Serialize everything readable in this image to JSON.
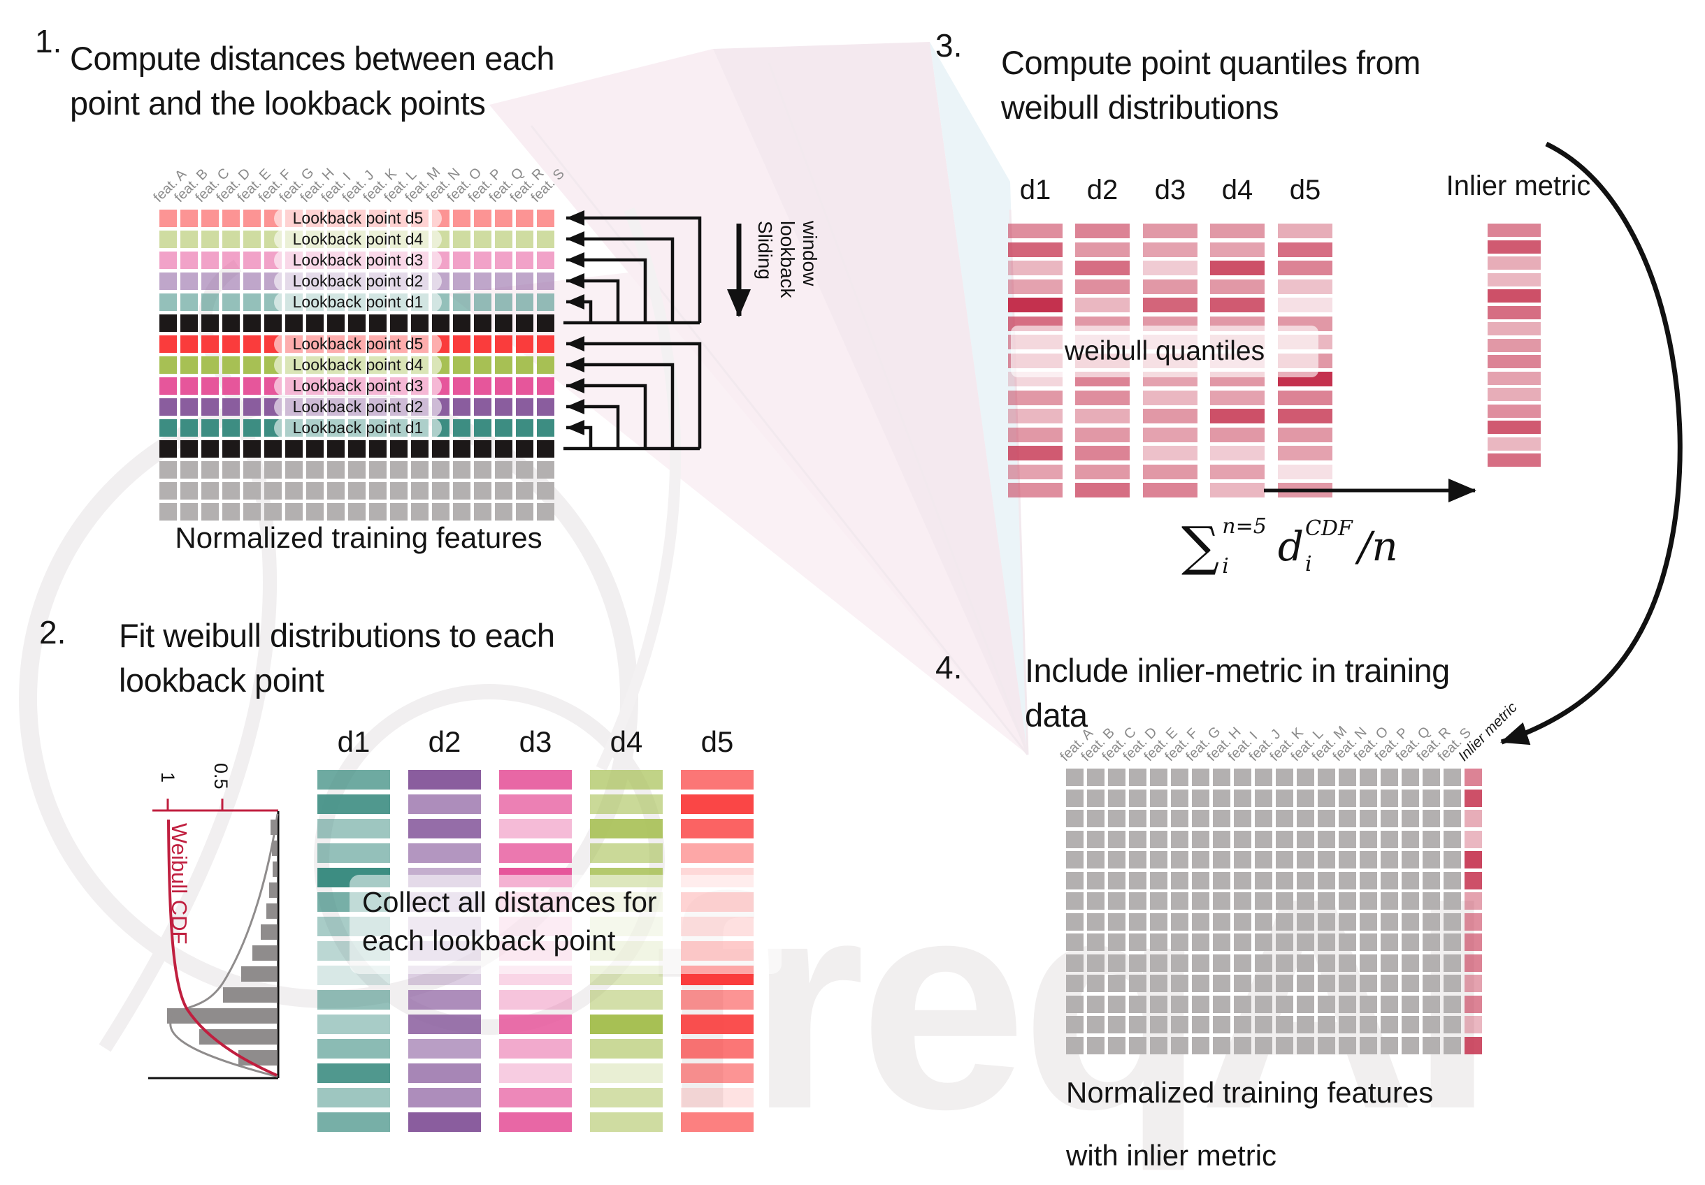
{
  "colors": {
    "teal": "#3D8D82",
    "purple": "#8A5D9E",
    "pink": "#E6569B",
    "green": "#A7C054",
    "red": "#FA3C3C",
    "black": "#1C1818",
    "gray": "#B3B0B0",
    "quantile_red": "#C4314E",
    "cdf_red": "#C01F3F",
    "hist_gray": "#8F8C8C",
    "feature_gray": "#8A8A8A"
  },
  "watermark": {
    "text": "freqAI"
  },
  "panel1": {
    "number": "1.",
    "title_lines": [
      "Compute distances between each",
      "point and the lookback points"
    ],
    "features": [
      "feat. A",
      "feat. B",
      "feat. C",
      "feat. D",
      "feat. E",
      "feat. F",
      "feat. G",
      "feat. H",
      "feat. I",
      "feat. J",
      "feat. K",
      "feat. L",
      "feat. M",
      "feat. N",
      "feat. O",
      "feat. P",
      "feat. Q",
      "feat. R",
      "feat. S"
    ],
    "rows": [
      {
        "color": "red",
        "faded": true,
        "label": "Lookback point d5"
      },
      {
        "color": "green",
        "faded": true,
        "label": "Lookback point d4"
      },
      {
        "color": "pink",
        "faded": true,
        "label": "Lookback point d3"
      },
      {
        "color": "purple",
        "faded": true,
        "label": "Lookback point d2"
      },
      {
        "color": "teal",
        "faded": true,
        "label": "Lookback point d1"
      },
      {
        "color": "black"
      },
      {
        "color": "red",
        "label": "Lookback point d5"
      },
      {
        "color": "green",
        "label": "Lookback point d4"
      },
      {
        "color": "pink",
        "label": "Lookback point d3"
      },
      {
        "color": "purple",
        "label": "Lookback point d2"
      },
      {
        "color": "teal",
        "label": "Lookback point d1"
      },
      {
        "color": "black"
      },
      {
        "color": "gray"
      },
      {
        "color": "gray"
      },
      {
        "color": "gray"
      }
    ],
    "sliding_label_lines": [
      "Sliding",
      "lookback",
      "window"
    ],
    "caption": "Normalized training features"
  },
  "panel2": {
    "number": "2.",
    "title_lines": [
      "Fit weibull distributions to each",
      "lookback point"
    ],
    "plot": {
      "type": "histogram+cdf",
      "ylabel": "Weibull CDF",
      "ticks": [
        "1",
        "0.5"
      ],
      "hist": [
        10,
        8,
        7,
        12,
        16,
        24,
        36,
        52,
        78,
        158,
        112,
        56
      ]
    },
    "columns": [
      "d1",
      "d2",
      "d3",
      "d4",
      "d5"
    ],
    "col_colors": [
      "teal",
      "purple",
      "pink",
      "green",
      "red"
    ],
    "opacity": [
      [
        0.75,
        0.9,
        0.5,
        0.55,
        1,
        0.7,
        0.45,
        0.35,
        0.2,
        0.55,
        0.45,
        0.6,
        0.9,
        0.5,
        0.7
      ],
      [
        1,
        0.7,
        0.9,
        0.65,
        0.5,
        0.35,
        0.3,
        0.35,
        0.3,
        0.7,
        0.85,
        0.6,
        0.75,
        0.7,
        1
      ],
      [
        0.9,
        0.75,
        0.4,
        0.8,
        1,
        0.35,
        0.25,
        0.3,
        0.25,
        0.35,
        0.85,
        0.5,
        0.3,
        0.7,
        0.9
      ],
      [
        0.7,
        0.6,
        0.9,
        0.6,
        0.85,
        0.3,
        0.25,
        0.35,
        0.4,
        0.5,
        1,
        0.6,
        0.25,
        0.5,
        0.55
      ],
      [
        0.7,
        0.95,
        0.8,
        0.45,
        0.2,
        0.5,
        0.35,
        0.6,
        1,
        0.55,
        0.9,
        0.7,
        0.55,
        0.15,
        0.65
      ]
    ],
    "overlay_lines": [
      "Collect all distances for",
      "each lookback point"
    ]
  },
  "panel3": {
    "number": "3.",
    "title_lines": [
      "Compute point quantiles from",
      "weibull distributions"
    ],
    "columns": [
      "d1",
      "d2",
      "d3",
      "d4",
      "d5"
    ],
    "opacity": [
      [
        0.55,
        0.75,
        0.35,
        0.45,
        1,
        0.7,
        0.5,
        0.55,
        0.2,
        0.5,
        0.35,
        0.5,
        0.8,
        0.45,
        0.55
      ],
      [
        0.6,
        0.5,
        0.7,
        0.55,
        0.35,
        0.5,
        0.3,
        0.5,
        0.6,
        0.55,
        0.4,
        0.5,
        0.6,
        0.5,
        0.7
      ],
      [
        0.5,
        0.45,
        0.25,
        0.5,
        0.75,
        0.5,
        0.3,
        0.4,
        0.45,
        0.35,
        0.5,
        0.45,
        0.3,
        0.5,
        0.6
      ],
      [
        0.5,
        0.45,
        0.85,
        0.5,
        0.8,
        0.5,
        0.35,
        0.3,
        0.5,
        0.45,
        0.85,
        0.5,
        0.25,
        0.45,
        0.35
      ],
      [
        0.4,
        0.7,
        0.6,
        0.3,
        0.15,
        0.5,
        0.35,
        0.5,
        1,
        0.6,
        0.8,
        0.5,
        0.45,
        0.15,
        0.5
      ]
    ],
    "overlay": "weibull quantiles",
    "inlier_header": "Inlier metric",
    "inlier_opacity": [
      0.6,
      0.8,
      0.4,
      0.35,
      0.85,
      0.7,
      0.4,
      0.5,
      0.6,
      0.45,
      0.4,
      0.55,
      0.8,
      0.35,
      0.7
    ],
    "formula": {
      "sigma": "∑",
      "upper": "n=5",
      "lower": "i",
      "d": "d",
      "d_upper": "CDF",
      "d_lower": "i",
      "rest": "/n"
    }
  },
  "panel4": {
    "number": "4.",
    "title_lines": [
      "Include inlier-metric in training",
      "data"
    ],
    "features": [
      "feat. A",
      "feat. B",
      "feat. C",
      "feat. D",
      "feat. E",
      "feat. F",
      "feat. G",
      "feat. H",
      "feat. I",
      "feat. J",
      "feat. K",
      "feat. L",
      "feat. M",
      "feat. N",
      "feat. O",
      "feat. P",
      "feat. Q",
      "feat. R",
      "feat. S"
    ],
    "inlier_header": "Inlier metric",
    "rows": 14,
    "inlier_opacity": [
      0.6,
      0.85,
      0.4,
      0.35,
      0.9,
      0.85,
      0.45,
      0.55,
      0.6,
      0.6,
      0.45,
      0.6,
      0.35,
      0.85
    ],
    "caption_lines": [
      "Normalized training features",
      "with inlier metric"
    ]
  }
}
